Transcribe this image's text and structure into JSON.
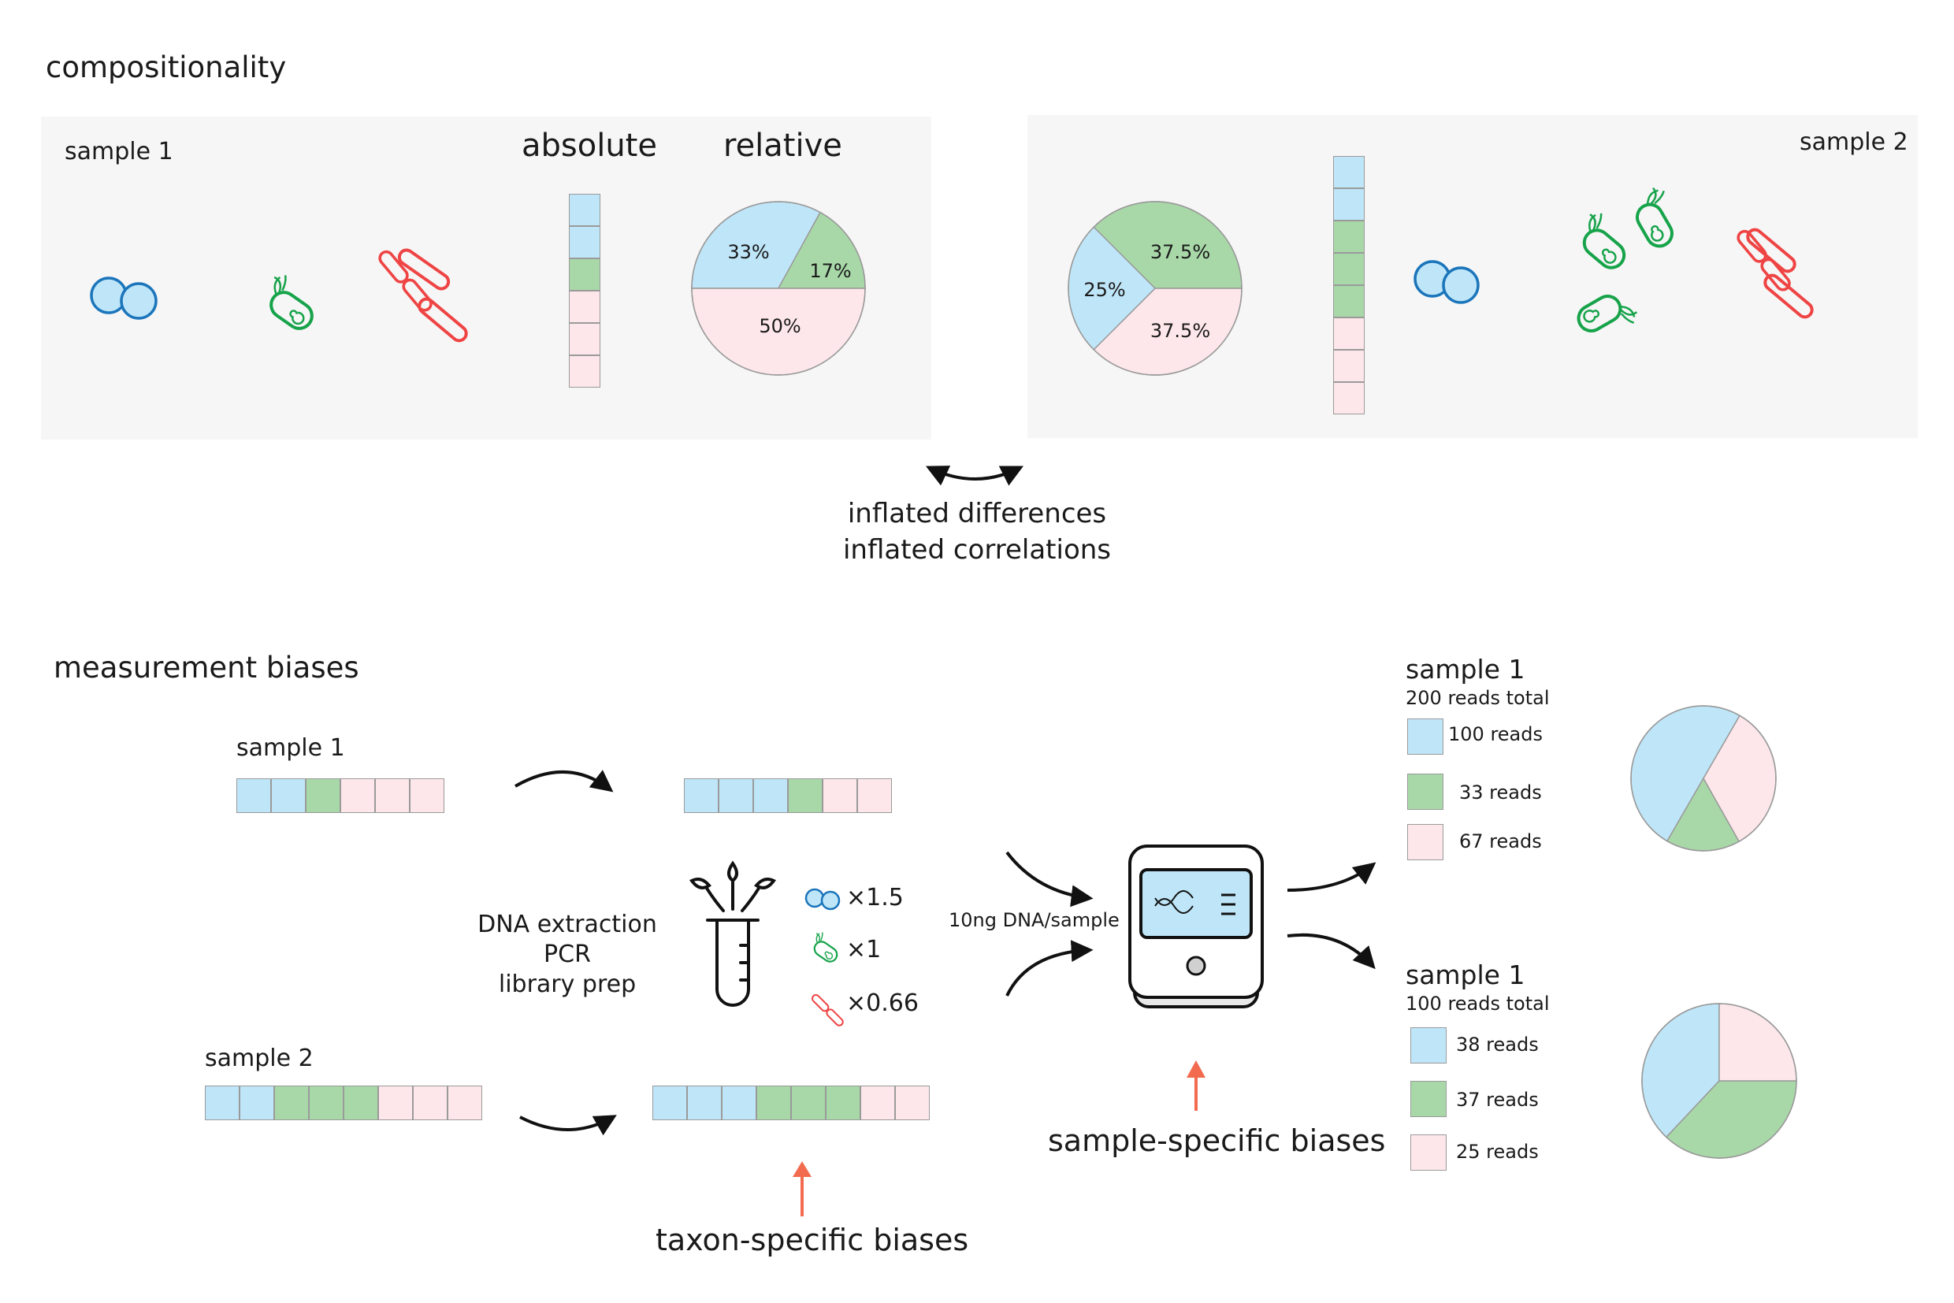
{
  "colors": {
    "blue": "#bfe6f8",
    "green": "#a8d8a8",
    "pink": "#fde7ea",
    "blue_outline": "#1b75bb",
    "green_outline": "#16a34a",
    "red_outline": "#ef4444",
    "orange_arrow": "#f26b4f",
    "panel_bg": "#f6f6f6"
  },
  "compositionality": {
    "title": "compositionality",
    "sample1_label": "sample 1",
    "sample2_label": "sample 2",
    "absolute_label": "absolute",
    "relative_label": "relative",
    "sample1_stack": [
      "blue",
      "blue",
      "green",
      "pink",
      "pink",
      "pink"
    ],
    "sample2_stack": [
      "blue",
      "blue",
      "green",
      "green",
      "green",
      "pink",
      "pink",
      "pink"
    ],
    "inflated_line1": "inflated differences",
    "inflated_line2": "inflated correlations"
  },
  "measurement": {
    "title": "measurement biases",
    "sample1_label": "sample 1",
    "sample2_label": "sample 2",
    "sample1_input": [
      "blue",
      "blue",
      "green",
      "pink",
      "pink",
      "pink"
    ],
    "sample1_output": [
      "blue",
      "blue",
      "blue",
      "green",
      "pink",
      "pink"
    ],
    "sample2_input": [
      "blue",
      "blue",
      "green",
      "green",
      "green",
      "pink",
      "pink",
      "pink"
    ],
    "sample2_output": [
      "blue",
      "blue",
      "blue",
      "green",
      "green",
      "green",
      "pink",
      "pink"
    ],
    "process_line1": "DNA extraction",
    "process_line2": "PCR",
    "process_line3": "library prep",
    "factor_coccus": "×1.5",
    "factor_bacillus": "×1",
    "factor_chain": "×0.66",
    "dna_label": "10ng DNA/sample",
    "taxon_bias_label": "taxon-specific biases",
    "sample_bias_label": "sample-specific biases",
    "result1": {
      "title": "sample 1",
      "total": "200 reads total",
      "reads": [
        "100 reads",
        "33 reads",
        "67 reads"
      ]
    },
    "result2": {
      "title": "sample 1",
      "total": "100 reads total",
      "reads": [
        "38 reads",
        "37 reads",
        "25 reads"
      ]
    }
  },
  "chart_data": [
    {
      "type": "pie",
      "name": "sample 1 relative",
      "labels": [
        "33%",
        "17%",
        "50%"
      ],
      "values": [
        33,
        17,
        50
      ],
      "colors": [
        "#bfe6f8",
        "#a8d8a8",
        "#fde7ea"
      ]
    },
    {
      "type": "pie",
      "name": "sample 2 relative",
      "labels": [
        "37.5%",
        "37.5%",
        "25%"
      ],
      "values": [
        37.5,
        37.5,
        25
      ],
      "colors": [
        "#a8d8a8",
        "#fde7ea",
        "#bfe6f8"
      ]
    },
    {
      "type": "pie",
      "name": "sample 1 reads (200 total)",
      "values": [
        100,
        33,
        67
      ],
      "colors": [
        "#bfe6f8",
        "#a8d8a8",
        "#fde7ea"
      ]
    },
    {
      "type": "pie",
      "name": "sample 1 reads (100 total)",
      "values": [
        38,
        37,
        25
      ],
      "colors": [
        "#bfe6f8",
        "#a8d8a8",
        "#fde7ea"
      ]
    }
  ]
}
